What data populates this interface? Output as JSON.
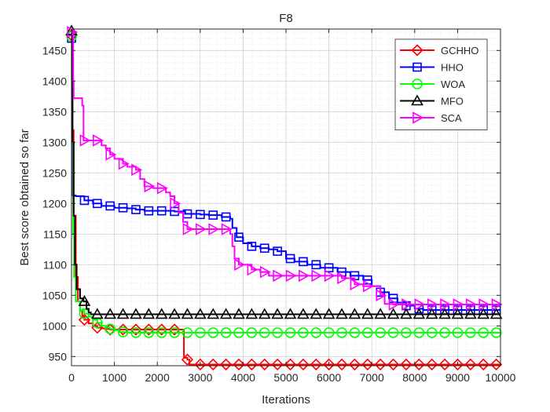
{
  "chart_data": {
    "type": "line",
    "title": "F8",
    "xlabel": "Iterations",
    "ylabel": "Best score obtained so far",
    "xlim": [
      0,
      10000
    ],
    "ylim": [
      935,
      1485
    ],
    "xticks": [
      0,
      1000,
      2000,
      3000,
      4000,
      5000,
      6000,
      7000,
      8000,
      9000,
      10000
    ],
    "xtick_labels": [
      "0",
      "1000",
      "2000",
      "3000",
      "4000",
      "5000",
      "6000",
      "7000",
      "8000",
      "9000",
      "10000"
    ],
    "yticks": [
      950,
      1000,
      1050,
      1100,
      1150,
      1200,
      1250,
      1300,
      1350,
      1400,
      1450
    ],
    "ytick_labels": [
      "950",
      "1000",
      "1050",
      "1100",
      "1150",
      "1200",
      "1250",
      "1300",
      "1350",
      "1400",
      "1450"
    ],
    "grid": true,
    "minor_grid": true,
    "legend_position": "top-right",
    "marker_interval": 300,
    "series": [
      {
        "name": "GCHHO",
        "color": "#ff0000",
        "marker": "diamond",
        "x": [
          1,
          20,
          50,
          100,
          150,
          200,
          250,
          300,
          400,
          500,
          600,
          700,
          800,
          900,
          1000,
          2600,
          2620,
          2700,
          2750,
          10000
        ],
        "y": [
          1475,
          1320,
          1180,
          1080,
          1040,
          1025,
          1015,
          1010,
          1004,
          1000,
          997,
          996,
          995,
          994,
          994,
          994,
          948,
          945,
          937,
          937
        ]
      },
      {
        "name": "HHO",
        "color": "#0000ff",
        "marker": "square",
        "x": [
          1,
          8,
          15,
          30,
          100,
          300,
          500,
          700,
          1000,
          1300,
          1500,
          1700,
          2000,
          2400,
          2650,
          3000,
          3200,
          3500,
          3700,
          3750,
          3850,
          4000,
          4200,
          4400,
          4600,
          4800,
          5000,
          5200,
          5500,
          5800,
          6200,
          6500,
          6800,
          7000,
          7200,
          7400,
          7600,
          7800,
          8000,
          8200,
          8500,
          10000
        ],
        "y": [
          1470,
          1400,
          1300,
          1213,
          1212,
          1205,
          1200,
          1196,
          1193,
          1192,
          1190,
          1188,
          1188,
          1187,
          1183,
          1182,
          1181,
          1178,
          1175,
          1160,
          1145,
          1135,
          1130,
          1127,
          1125,
          1122,
          1110,
          1105,
          1100,
          1095,
          1088,
          1082,
          1075,
          1065,
          1055,
          1045,
          1038,
          1033,
          1028,
          1026,
          1026,
          1026
        ]
      },
      {
        "name": "WOA",
        "color": "#00ff00",
        "marker": "circle",
        "x": [
          1,
          10,
          20,
          40,
          60,
          100,
          200,
          300,
          400,
          500,
          600,
          700,
          800,
          900,
          1000,
          1100,
          1300,
          10000
        ],
        "y": [
          1473,
          1400,
          1300,
          1150,
          1080,
          1040,
          1025,
          1020,
          1015,
          1010,
          1005,
          1000,
          997,
          995,
          993,
          990,
          989,
          989
        ]
      },
      {
        "name": "MFO",
        "color": "#000000",
        "marker": "triangle-up",
        "x": [
          1,
          10,
          25,
          50,
          80,
          120,
          200,
          280,
          300,
          350,
          400,
          450,
          10000
        ],
        "y": [
          1482,
          1430,
          1300,
          1180,
          1100,
          1060,
          1045,
          1040,
          1040,
          1028,
          1022,
          1019,
          1019
        ]
      },
      {
        "name": "SCA",
        "color": "#ff00ff",
        "marker": "triangle-right",
        "x": [
          1,
          40,
          50,
          200,
          250,
          280,
          400,
          600,
          700,
          800,
          900,
          1000,
          1100,
          1200,
          1300,
          1500,
          1600,
          1700,
          1900,
          2000,
          2200,
          2300,
          2400,
          2500,
          2600,
          2700,
          3400,
          3600,
          3700,
          3750,
          3800,
          3900,
          4200,
          4400,
          4600,
          4800,
          5200,
          6000,
          6300,
          6600,
          6800,
          7200,
          7300,
          7500,
          10000
        ],
        "y": [
          1480,
          1400,
          1372,
          1372,
          1360,
          1303,
          1303,
          1303,
          1295,
          1290,
          1280,
          1273,
          1273,
          1265,
          1260,
          1255,
          1240,
          1228,
          1225,
          1225,
          1218,
          1212,
          1200,
          1185,
          1170,
          1158,
          1158,
          1158,
          1150,
          1130,
          1110,
          1100,
          1092,
          1088,
          1082,
          1082,
          1082,
          1082,
          1078,
          1068,
          1065,
          1050,
          1036,
          1035,
          1035
        ]
      }
    ]
  }
}
